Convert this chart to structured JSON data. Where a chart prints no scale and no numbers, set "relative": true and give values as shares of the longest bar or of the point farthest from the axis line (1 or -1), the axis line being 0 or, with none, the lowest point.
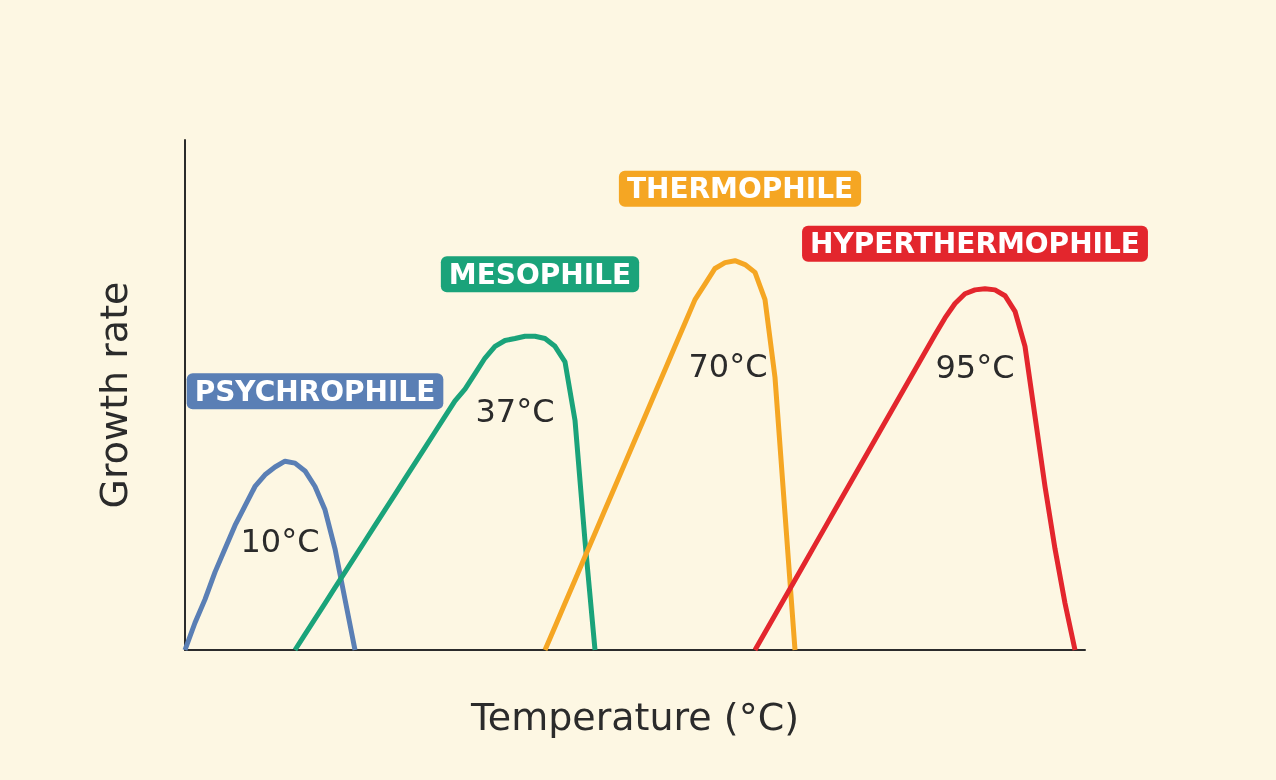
{
  "chart_data": {
    "type": "line",
    "relative": true,
    "xlabel": "Temperature (°C)",
    "ylabel": "Growth rate",
    "legend": false,
    "grid": false,
    "marker": "none",
    "categories": [
      null,
      null,
      null,
      null,
      null,
      null,
      null,
      null,
      null,
      null,
      null,
      null,
      null,
      null,
      null,
      null,
      null,
      null,
      null,
      null,
      null,
      null,
      null,
      null,
      null,
      null,
      null,
      null,
      null,
      null,
      null,
      null,
      null,
      null,
      null,
      null,
      null,
      null,
      null,
      null,
      null,
      null,
      null,
      null,
      null,
      null,
      null,
      null,
      null,
      null,
      null,
      null,
      null,
      null,
      null,
      null,
      null,
      null,
      null,
      null,
      null,
      null,
      null,
      null,
      null,
      null,
      null,
      null,
      null,
      null,
      null,
      null,
      null,
      null,
      null,
      null,
      null,
      null,
      null,
      null,
      null,
      null,
      null,
      null,
      null,
      null,
      null,
      null,
      null,
      null,
      null
    ],
    "series": [
      {
        "name": "PSYCHROPHILE",
        "color": "#5a7fb5",
        "values": [
          0,
          0.07,
          0.13,
          0.2,
          0.26,
          0.32,
          0.37,
          0.42,
          0.45,
          0.47,
          0.485,
          0.48,
          0.46,
          0.42,
          0.36,
          0.26,
          0.13,
          0,
          null,
          null,
          null,
          null,
          null,
          null,
          null,
          null,
          null,
          null,
          null,
          null,
          null,
          null,
          null,
          null,
          null,
          null,
          null,
          null,
          null,
          null,
          null,
          null,
          null,
          null,
          null,
          null,
          null,
          null,
          null,
          null,
          null,
          null,
          null,
          null,
          null,
          null,
          null,
          null,
          null,
          null,
          null,
          null,
          null,
          null,
          null,
          null,
          null,
          null,
          null,
          null,
          null,
          null,
          null,
          null,
          null,
          null,
          null,
          null,
          null,
          null,
          null,
          null,
          null,
          null,
          null,
          null,
          null,
          null,
          null,
          null,
          null
        ]
      },
      {
        "name": "MESOPHILE",
        "color": "#1aa37a",
        "values": [
          null,
          null,
          null,
          null,
          null,
          null,
          null,
          null,
          null,
          null,
          null,
          0,
          0.04,
          0.08,
          0.12,
          0.16,
          0.2,
          0.24,
          0.28,
          0.32,
          0.36,
          0.4,
          0.44,
          0.48,
          0.52,
          0.56,
          0.6,
          0.64,
          0.67,
          0.71,
          0.75,
          0.78,
          0.795,
          0.8,
          0.806,
          0.806,
          0.8,
          0.78,
          0.74,
          0.59,
          0.28,
          0,
          null,
          null,
          null,
          null,
          null,
          null,
          null,
          null,
          null,
          null,
          null,
          null,
          null,
          null,
          null,
          null,
          null,
          null,
          null,
          null,
          null,
          null,
          null,
          null,
          null,
          null,
          null,
          null,
          null,
          null,
          null,
          null,
          null,
          null,
          null,
          null,
          null,
          null,
          null,
          null,
          null,
          null,
          null,
          null,
          null,
          null,
          null,
          null,
          null
        ]
      },
      {
        "name": "THERMOPHILE",
        "color": "#f5a623",
        "values": [
          null,
          null,
          null,
          null,
          null,
          null,
          null,
          null,
          null,
          null,
          null,
          null,
          null,
          null,
          null,
          null,
          null,
          null,
          null,
          null,
          null,
          null,
          null,
          null,
          null,
          null,
          null,
          null,
          null,
          null,
          null,
          null,
          null,
          null,
          null,
          null,
          0,
          0.06,
          0.12,
          0.18,
          0.24,
          0.3,
          0.36,
          0.42,
          0.48,
          0.54,
          0.6,
          0.66,
          0.72,
          0.78,
          0.84,
          0.9,
          0.94,
          0.98,
          0.995,
          1,
          0.99,
          0.97,
          0.9,
          0.7,
          0.35,
          0,
          null,
          null,
          null,
          null,
          null,
          null,
          null,
          null,
          null,
          null,
          null,
          null,
          null,
          null,
          null,
          null,
          null,
          null,
          null,
          null,
          null,
          null,
          null,
          null,
          null,
          null,
          null,
          null,
          null
        ]
      },
      {
        "name": "HYPERTHERMOPHILE",
        "color": "#e3262d",
        "values": [
          null,
          null,
          null,
          null,
          null,
          null,
          null,
          null,
          null,
          null,
          null,
          null,
          null,
          null,
          null,
          null,
          null,
          null,
          null,
          null,
          null,
          null,
          null,
          null,
          null,
          null,
          null,
          null,
          null,
          null,
          null,
          null,
          null,
          null,
          null,
          null,
          null,
          null,
          null,
          null,
          null,
          null,
          null,
          null,
          null,
          null,
          null,
          null,
          null,
          null,
          null,
          null,
          null,
          null,
          null,
          null,
          null,
          0,
          0.045,
          0.09,
          0.135,
          0.18,
          0.225,
          0.27,
          0.315,
          0.36,
          0.405,
          0.45,
          0.495,
          0.54,
          0.585,
          0.63,
          0.675,
          0.72,
          0.765,
          0.81,
          0.853,
          0.89,
          0.915,
          0.925,
          0.928,
          0.925,
          0.91,
          0.87,
          0.78,
          0.6,
          0.42,
          0.26,
          0.12,
          0,
          null
        ]
      }
    ],
    "annotations": [
      "10°C",
      "37°C",
      "70°C",
      "95°C"
    ]
  }
}
